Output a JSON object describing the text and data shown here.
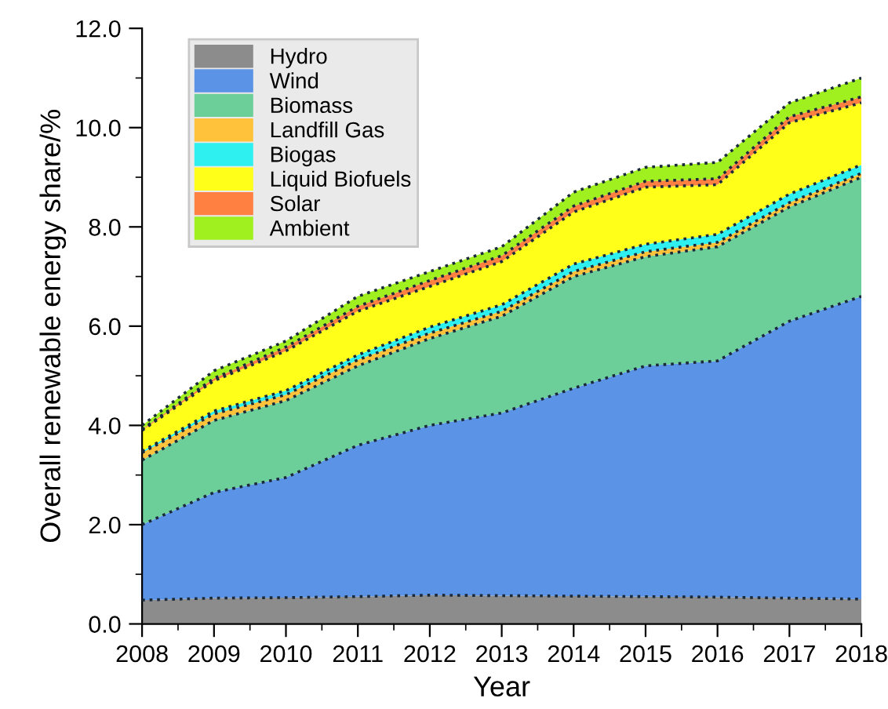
{
  "chart_data": {
    "type": "area",
    "stacked": true,
    "xlabel": "Year",
    "ylabel": "Overall renewable energy share/%",
    "x": [
      2008,
      2009,
      2010,
      2011,
      2012,
      2013,
      2014,
      2015,
      2016,
      2017,
      2018
    ],
    "series": [
      {
        "name": "Hydro",
        "color": "#8c8c8c",
        "values": [
          0.48,
          0.52,
          0.53,
          0.55,
          0.58,
          0.57,
          0.56,
          0.55,
          0.54,
          0.52,
          0.5
        ]
      },
      {
        "name": "Wind",
        "color": "#5b93e6",
        "values": [
          1.52,
          2.13,
          2.42,
          3.05,
          3.42,
          3.68,
          4.19,
          4.65,
          4.76,
          5.58,
          6.1
        ]
      },
      {
        "name": "Biomass",
        "color": "#6ccf9a",
        "values": [
          1.3,
          1.45,
          1.55,
          1.6,
          1.75,
          1.95,
          2.25,
          2.2,
          2.3,
          2.3,
          2.4
        ]
      },
      {
        "name": "Landfill Gas",
        "color": "#ffc23a",
        "values": [
          0.15,
          0.13,
          0.12,
          0.12,
          0.11,
          0.1,
          0.1,
          0.1,
          0.09,
          0.09,
          0.08
        ]
      },
      {
        "name": "Biogas",
        "color": "#2ff0f0",
        "values": [
          0.03,
          0.06,
          0.08,
          0.1,
          0.12,
          0.13,
          0.15,
          0.15,
          0.16,
          0.17,
          0.17
        ]
      },
      {
        "name": "Liquid Biofuels",
        "color": "#ffff1a",
        "values": [
          0.42,
          0.61,
          0.8,
          0.88,
          0.82,
          0.87,
          1.05,
          1.15,
          1.0,
          1.44,
          1.25
        ]
      },
      {
        "name": "Solar",
        "color": "#ff8040",
        "values": [
          0.02,
          0.05,
          0.08,
          0.1,
          0.12,
          0.12,
          0.12,
          0.12,
          0.12,
          0.12,
          0.12
        ]
      },
      {
        "name": "Ambient",
        "color": "#a0f020",
        "values": [
          0.08,
          0.15,
          0.12,
          0.2,
          0.18,
          0.18,
          0.28,
          0.28,
          0.33,
          0.28,
          0.38
        ]
      }
    ],
    "xlim": [
      2008,
      2018
    ],
    "xticks": [
      2008,
      2009,
      2010,
      2011,
      2012,
      2013,
      2014,
      2015,
      2016,
      2017,
      2018
    ],
    "ylim": [
      0,
      12
    ],
    "yticks": [
      {
        "value": 0,
        "label": "0.0"
      },
      {
        "value": 2,
        "label": "2.0"
      },
      {
        "value": 4,
        "label": "4.0"
      },
      {
        "value": 6,
        "label": "6.0"
      },
      {
        "value": 8,
        "label": "8.0"
      },
      {
        "value": 10,
        "label": "10.0"
      },
      {
        "value": 12,
        "label": "12.0"
      }
    ],
    "legend": "top left",
    "grid": false,
    "line_style": "dotted"
  }
}
